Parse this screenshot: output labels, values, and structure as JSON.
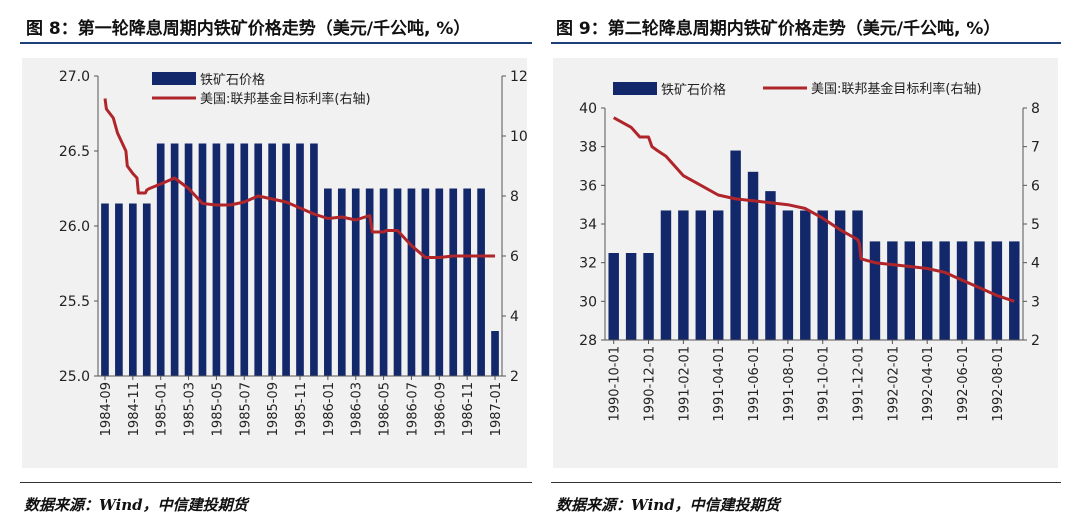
{
  "left": {
    "title": "图 8：第一轮降息周期内铁矿价格走势（美元/千公吨, %）",
    "source": "数据来源：Wind，中信建投期货"
  },
  "right": {
    "title": "图 9：第二轮降息周期内铁矿价格走势（美元/千公吨, %）",
    "source": "数据来源：Wind，中信建投期货"
  },
  "colors": {
    "bar": "#13286b",
    "line": "#b0252a",
    "rule": "#1d3f7a",
    "plot_bg": "#f1f1f1"
  },
  "chart_data": [
    {
      "type": "bar+line",
      "title": "图 8：第一轮降息周期内铁矿价格走势（美元/千公吨, %）",
      "legend": [
        "铁矿石价格",
        "美国:联邦基金目标利率(右轴)"
      ],
      "categories": [
        "1984-09",
        "1984-10",
        "1984-11",
        "1984-12",
        "1985-01",
        "1985-02",
        "1985-03",
        "1985-04",
        "1985-05",
        "1985-06",
        "1985-07",
        "1985-08",
        "1985-09",
        "1985-10",
        "1985-11",
        "1985-12",
        "1986-01",
        "1986-02",
        "1986-03",
        "1986-04",
        "1986-05",
        "1986-06",
        "1986-07",
        "1986-08",
        "1986-09",
        "1986-10",
        "1986-11",
        "1986-12",
        "1987-01"
      ],
      "xtick_labels": [
        "1984-09",
        "1984-11",
        "1985-01",
        "1985-03",
        "1985-05",
        "1985-07",
        "1985-09",
        "1985-11",
        "1986-01",
        "1986-03",
        "1986-05",
        "1986-07",
        "1986-09",
        "1986-11",
        "1987-01"
      ],
      "series": [
        {
          "name": "铁矿石价格",
          "axis": "left",
          "kind": "bar",
          "values": [
            26.15,
            26.15,
            26.15,
            26.15,
            26.55,
            26.55,
            26.55,
            26.55,
            26.55,
            26.55,
            26.55,
            26.55,
            26.55,
            26.55,
            26.55,
            26.55,
            26.25,
            26.25,
            26.25,
            26.25,
            26.25,
            26.25,
            26.25,
            26.25,
            26.25,
            26.25,
            26.25,
            26.25,
            25.3
          ]
        },
        {
          "name": "美国:联邦基金目标利率(右轴)",
          "axis": "right",
          "kind": "line",
          "x": [
            0,
            0.1,
            0.6,
            0.9,
            1.0,
            1.5,
            1.6,
            2.0,
            2.3,
            2.4,
            2.9,
            3.0,
            3.2,
            4.0,
            5.0,
            6.0,
            7.0,
            8.0,
            9.0,
            10.0,
            11.0,
            12.0,
            13.0,
            14.0,
            15.0,
            16.0,
            17.0,
            18.0,
            19.0,
            19.2,
            20.0,
            20.2,
            21.0,
            22.0,
            23.0,
            24.0,
            25.0,
            26.0,
            27.0,
            28.0
          ],
          "y": [
            11.25,
            10.9,
            10.6,
            10.1,
            10.0,
            9.5,
            9.0,
            8.75,
            8.6,
            8.1,
            8.1,
            8.2,
            8.25,
            8.4,
            8.6,
            8.25,
            7.75,
            7.7,
            7.7,
            7.8,
            8.0,
            7.9,
            7.8,
            7.6,
            7.4,
            7.25,
            7.3,
            7.2,
            7.35,
            6.8,
            6.8,
            6.85,
            6.85,
            6.35,
            5.95,
            5.95,
            6.0,
            6.0,
            6.0,
            6.0
          ]
        }
      ],
      "yleft": {
        "min": 25.0,
        "max": 27.0,
        "ticks": [
          "25.0",
          "25.5",
          "26.0",
          "26.5",
          "27.0"
        ]
      },
      "yright": {
        "min": 2,
        "max": 12,
        "ticks": [
          "2",
          "4",
          "6",
          "8",
          "10",
          "12"
        ]
      }
    },
    {
      "type": "bar+line",
      "title": "图 9：第二轮降息周期内铁矿价格走势（美元/千公吨, %）",
      "legend": [
        "铁矿石价格",
        "美国:联邦基金目标利率(右轴)"
      ],
      "categories": [
        "1990-10-01",
        "1990-11-01",
        "1990-12-01",
        "1991-01-01",
        "1991-02-01",
        "1991-03-01",
        "1991-04-01",
        "1991-05-01",
        "1991-06-01",
        "1991-07-01",
        "1991-08-01",
        "1991-09-01",
        "1991-10-01",
        "1991-11-01",
        "1991-12-01",
        "1992-01-01",
        "1992-02-01",
        "1992-03-01",
        "1992-04-01",
        "1992-05-01",
        "1992-06-01",
        "1992-07-01",
        "1992-08-01",
        "1992-09-01"
      ],
      "xtick_labels": [
        "1990-10-01",
        "1990-12-01",
        "1991-02-01",
        "1991-04-01",
        "1991-06-01",
        "1991-08-01",
        "1991-10-01",
        "1991-12-01",
        "1992-02-01",
        "1992-04-01",
        "1992-06-01",
        "1992-08-01"
      ],
      "series": [
        {
          "name": "铁矿石价格",
          "axis": "left",
          "kind": "bar",
          "values": [
            32.5,
            32.5,
            32.5,
            34.7,
            34.7,
            34.7,
            34.7,
            37.8,
            36.7,
            35.7,
            34.7,
            34.7,
            34.7,
            34.7,
            34.7,
            33.1,
            33.1,
            33.1,
            33.1,
            33.1,
            33.1,
            33.1,
            33.1,
            33.1
          ]
        },
        {
          "name": "美国:联邦基金目标利率(右轴)",
          "axis": "right",
          "kind": "line",
          "x": [
            0,
            1,
            1.5,
            2,
            2.2,
            2.5,
            3,
            4,
            5,
            6,
            7,
            8,
            9,
            10,
            11,
            12,
            13,
            14,
            14.1,
            14.2,
            15,
            16,
            17,
            18,
            19,
            20,
            21,
            22,
            23
          ],
          "y": [
            7.75,
            7.5,
            7.25,
            7.25,
            7.0,
            6.9,
            6.75,
            6.25,
            6.0,
            5.75,
            5.65,
            5.6,
            5.55,
            5.5,
            5.4,
            5.15,
            4.85,
            4.6,
            4.5,
            4.1,
            4.0,
            3.95,
            3.9,
            3.85,
            3.75,
            3.55,
            3.35,
            3.15,
            3.0
          ]
        }
      ],
      "yleft": {
        "min": 28,
        "max": 40,
        "ticks": [
          "28",
          "30",
          "32",
          "34",
          "36",
          "38",
          "40"
        ]
      },
      "yright": {
        "min": 2,
        "max": 8,
        "ticks": [
          "2",
          "3",
          "4",
          "5",
          "6",
          "7",
          "8"
        ]
      }
    }
  ]
}
